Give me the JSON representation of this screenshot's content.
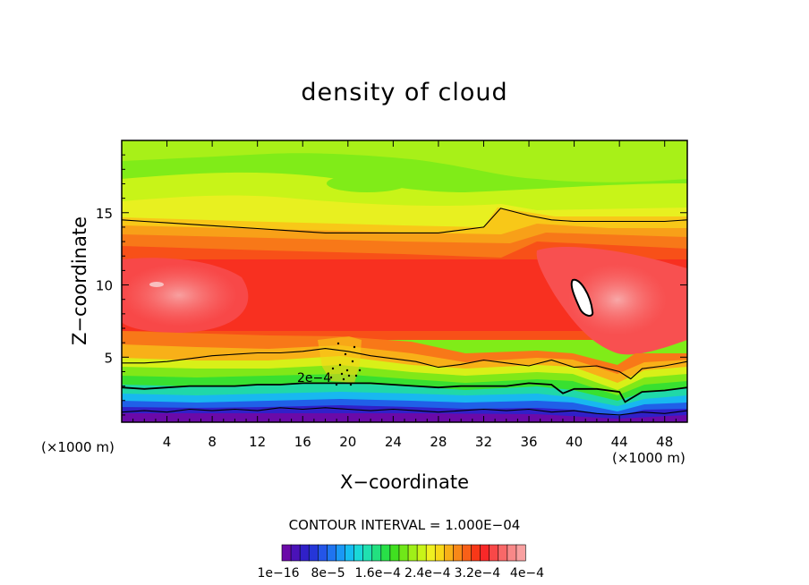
{
  "chart_data": {
    "type": "heatmap",
    "subtype": "filled-contour",
    "title": "density of cloud",
    "xlabel": "X−coordinate",
    "ylabel": "Z−coordinate",
    "x_unit_label": "(×1000 m)",
    "y_unit_label": "(×1000 m)",
    "xlim": [
      0,
      50
    ],
    "ylim": [
      0.5,
      20
    ],
    "xticks": [
      4,
      8,
      12,
      16,
      20,
      24,
      28,
      32,
      36,
      40,
      44,
      48
    ],
    "yticks": [
      5,
      10,
      15
    ],
    "contour_interval_text": "CONTOUR INTERVAL = 1.000E−04",
    "contour_label": "2e−4",
    "colorbar": {
      "colors": [
        "#6a0aa8",
        "#4a12b8",
        "#3020c8",
        "#2536d8",
        "#2455e8",
        "#1f74f0",
        "#1a98f5",
        "#16bdf0",
        "#1ad8d8",
        "#20e0b0",
        "#22e080",
        "#28e048",
        "#40e020",
        "#70e818",
        "#a0f018",
        "#c8f418",
        "#f0f020",
        "#f8d818",
        "#f8b018",
        "#f88818",
        "#f86018",
        "#f83818",
        "#f82828",
        "#f84848",
        "#f86868",
        "#f88888",
        "#f8a0a0"
      ],
      "tick_labels": [
        "1e−16",
        "8e−5",
        "1.6e−4",
        "2.4e−4",
        "3.2e−4",
        "4e−4"
      ]
    },
    "contour_levels": [
      2e-16,
      0.0001,
      0.0002
    ],
    "contour_lines": [
      {
        "level": "0.0002",
        "x": [
          0,
          2,
          4,
          6,
          8,
          10,
          12,
          14,
          16,
          18,
          20,
          22,
          24,
          26,
          28,
          30,
          32,
          33.5,
          34,
          36,
          38,
          40,
          42,
          44,
          46,
          48,
          50
        ],
        "z": [
          14.5,
          14.4,
          14.3,
          14.2,
          14.1,
          14.0,
          13.9,
          13.8,
          13.7,
          13.6,
          13.6,
          13.6,
          13.6,
          13.6,
          13.6,
          13.8,
          14.0,
          15.3,
          15.2,
          14.8,
          14.5,
          14.4,
          14.4,
          14.4,
          14.4,
          14.4,
          14.5
        ]
      },
      {
        "level": "0.0002",
        "x": [
          0,
          2,
          4,
          6,
          8,
          10,
          12,
          14,
          16,
          18,
          20,
          22,
          24,
          26,
          28,
          30,
          32,
          34,
          36,
          38,
          40,
          42,
          44,
          45,
          46,
          48,
          50
        ],
        "z": [
          4.6,
          4.6,
          4.7,
          4.9,
          5.1,
          5.2,
          5.3,
          5.3,
          5.4,
          5.6,
          5.4,
          5.1,
          4.9,
          4.7,
          4.3,
          4.5,
          4.8,
          4.6,
          4.4,
          4.8,
          4.3,
          4.4,
          4.0,
          3.5,
          4.2,
          4.4,
          4.7
        ]
      },
      {
        "level": "0.0001",
        "x": [
          0,
          2,
          4,
          6,
          8,
          10,
          12,
          14,
          16,
          18,
          20,
          22,
          24,
          26,
          28,
          30,
          32,
          34,
          36,
          38,
          39,
          40,
          42,
          44,
          44.5,
          46,
          48,
          50
        ],
        "z": [
          2.9,
          2.8,
          2.9,
          3.0,
          3.0,
          3.0,
          3.1,
          3.1,
          3.2,
          3.2,
          3.2,
          3.2,
          3.1,
          3.0,
          2.9,
          3.0,
          3.0,
          3.0,
          3.2,
          3.1,
          2.5,
          2.8,
          2.8,
          2.6,
          1.9,
          2.6,
          2.7,
          2.9
        ]
      },
      {
        "level": "2e-16",
        "x": [
          0,
          2,
          4,
          6,
          8,
          10,
          12,
          14,
          16,
          18,
          20,
          22,
          24,
          26,
          28,
          30,
          32,
          34,
          36,
          38,
          40,
          42,
          44,
          46,
          48,
          50
        ],
        "z": [
          1.2,
          1.3,
          1.2,
          1.4,
          1.3,
          1.4,
          1.3,
          1.5,
          1.4,
          1.5,
          1.4,
          1.3,
          1.4,
          1.3,
          1.2,
          1.3,
          1.4,
          1.3,
          1.4,
          1.2,
          1.3,
          1.1,
          1.0,
          1.2,
          1.1,
          1.3
        ]
      }
    ]
  }
}
